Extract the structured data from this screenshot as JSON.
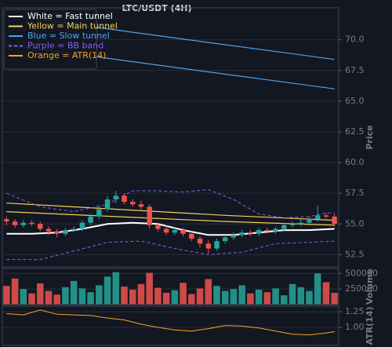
{
  "chart_data": [
    {
      "type": "candlestick",
      "title": "LTC/USDT (4H)",
      "ylabel": "Price",
      "xlim": [
        -0.5,
        39.5
      ],
      "ylim": [
        51.5,
        72.6
      ],
      "yticks": [
        52.5,
        {
          "value": 55,
          "label": "55.0"
        },
        57.5,
        {
          "value": 60,
          "label": "60.0"
        },
        62.5,
        {
          "value": 65,
          "label": "65.0"
        },
        67.5,
        {
          "value": 70,
          "label": "70.0"
        }
      ],
      "grid": true,
      "up_color": "#26a69a",
      "down_color": "#ef5350",
      "open": [
        55.4,
        55.2,
        54.9,
        55.1,
        55.0,
        54.6,
        54.4,
        54.2,
        54.5,
        54.6,
        55.1,
        55.6,
        56.2,
        57.0,
        57.3,
        56.8,
        56.6,
        56.4,
        54.9,
        54.6,
        54.3,
        54.5,
        54.2,
        53.8,
        53.4,
        53.0,
        53.6,
        53.9,
        54.1,
        54.3,
        54.2,
        54.5,
        54.4,
        54.6,
        54.9,
        55.0,
        55.1,
        55.4,
        55.7,
        55.6
      ],
      "high": [
        55.6,
        55.4,
        55.3,
        55.3,
        55.2,
        54.8,
        54.6,
        54.7,
        54.8,
        55.3,
        55.8,
        56.5,
        57.3,
        57.7,
        57.5,
        57.0,
        56.9,
        56.6,
        55.1,
        54.9,
        54.7,
        54.7,
        54.4,
        54.0,
        53.7,
        53.8,
        54.1,
        54.3,
        54.5,
        54.5,
        54.7,
        54.7,
        54.8,
        55.1,
        55.2,
        55.4,
        55.6,
        56.5,
        55.9,
        55.8
      ],
      "low": [
        54.9,
        54.7,
        54.7,
        54.8,
        54.4,
        54.1,
        53.9,
        54.0,
        54.3,
        54.4,
        54.9,
        55.4,
        56.0,
        56.7,
        56.6,
        56.4,
        56.2,
        54.6,
        54.4,
        54.1,
        54.1,
        54.0,
        53.6,
        53.1,
        52.6,
        52.8,
        53.4,
        53.7,
        53.9,
        54.0,
        54.0,
        54.2,
        54.2,
        54.4,
        54.7,
        54.8,
        54.9,
        55.2,
        55.4,
        54.8
      ],
      "close": [
        55.2,
        54.9,
        55.1,
        55.0,
        54.6,
        54.4,
        54.2,
        54.5,
        54.6,
        55.1,
        55.6,
        56.2,
        57.0,
        57.3,
        56.8,
        56.6,
        56.4,
        54.9,
        54.6,
        54.3,
        54.5,
        54.2,
        53.8,
        53.4,
        53.0,
        53.6,
        53.9,
        54.1,
        54.3,
        54.2,
        54.5,
        54.4,
        54.6,
        54.9,
        55.0,
        55.1,
        55.4,
        55.7,
        55.6,
        55.0
      ],
      "series": [
        {
          "name": "White = Fast tunnel",
          "color": "#ffffff",
          "width": 2,
          "x": [
            0,
            3,
            6,
            9,
            12,
            15,
            18,
            21,
            24,
            27,
            30,
            33,
            36,
            39
          ],
          "values": [
            54.2,
            54.2,
            54.3,
            54.6,
            55.0,
            55.1,
            55.0,
            54.5,
            54.1,
            54.1,
            54.3,
            54.5,
            54.5,
            54.6
          ]
        },
        {
          "name": "Yellow = Main tunnel",
          "color": "#f7d154",
          "width": 1.2,
          "x": [
            0,
            13,
            26,
            39
          ],
          "values": [
            56.7,
            56.2,
            55.7,
            55.3
          ]
        },
        {
          "color": "#f7d154",
          "width": 1.2,
          "x": [
            0,
            13,
            26,
            39
          ],
          "values": [
            56.0,
            55.6,
            55.2,
            54.9
          ]
        },
        {
          "name": "Blue = Slow tunnel",
          "color": "#4da3f0",
          "width": 1.2,
          "x": [
            0,
            39
          ],
          "values": [
            72.0,
            68.4
          ]
        },
        {
          "color": "#4da3f0",
          "width": 1.2,
          "x": [
            0,
            39
          ],
          "values": [
            69.6,
            66.0
          ]
        },
        {
          "name": "Purple = BB band",
          "color": "#8a5cf0",
          "width": 1,
          "dash": true,
          "x": [
            0,
            4,
            8,
            12,
            15,
            18,
            21,
            24,
            27,
            30,
            33,
            36,
            38,
            39
          ],
          "values": [
            57.5,
            56.4,
            56.0,
            56.6,
            57.7,
            57.7,
            57.6,
            57.8,
            57.0,
            55.8,
            55.5,
            55.6,
            55.9,
            55.9
          ]
        },
        {
          "color": "#8a5cf0",
          "width": 1,
          "dash": true,
          "x": [
            0,
            4,
            8,
            12,
            16,
            20,
            24,
            28,
            32,
            36,
            39
          ],
          "values": [
            52.1,
            52.1,
            52.8,
            53.5,
            53.6,
            53.0,
            52.5,
            52.7,
            53.4,
            53.5,
            53.6
          ]
        }
      ]
    },
    {
      "type": "bar",
      "ylabel": "Volume",
      "xlim": [
        -0.5,
        39.5
      ],
      "ylim": [
        0,
        580000
      ],
      "yticks": [
        250000,
        500000
      ],
      "grid": true,
      "values": [
        300000,
        420000,
        250000,
        180000,
        340000,
        220000,
        160000,
        280000,
        380000,
        260000,
        200000,
        310000,
        450000,
        520000,
        290000,
        240000,
        330000,
        510000,
        270000,
        190000,
        230000,
        350000,
        170000,
        260000,
        410000,
        300000,
        220000,
        250000,
        310000,
        180000,
        240000,
        200000,
        260000,
        150000,
        330000,
        280000,
        220000,
        500000,
        360000,
        190000
      ]
    },
    {
      "type": "line",
      "ylabel": "ATR(14)",
      "xlim": [
        -0.5,
        39.5
      ],
      "ylim": [
        0.71,
        1.34
      ],
      "yticks": [
        {
          "value": 1,
          "label": "1.00"
        },
        1.25
      ],
      "grid": true,
      "series": [
        {
          "name": "Orange = ATR(14)",
          "color": "#f5a623",
          "width": 1,
          "x": [
            0,
            2,
            4,
            6,
            8,
            10,
            12,
            14,
            16,
            18,
            20,
            22,
            24,
            26,
            28,
            30,
            32,
            34,
            36,
            38,
            39
          ],
          "values": [
            1.22,
            1.2,
            1.28,
            1.21,
            1.2,
            1.19,
            1.15,
            1.12,
            1.05,
            1.0,
            0.96,
            0.94,
            0.98,
            1.03,
            1.02,
            0.99,
            0.94,
            0.89,
            0.88,
            0.91,
            0.93
          ]
        }
      ]
    }
  ]
}
